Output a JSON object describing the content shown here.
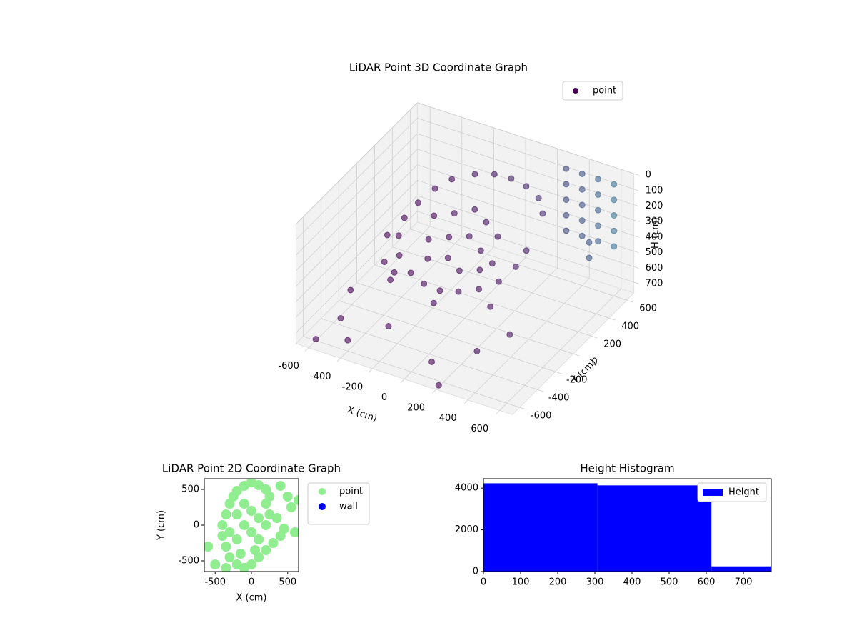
{
  "chart_data": [
    {
      "type": "scatter3d",
      "title": "LiDAR Point 3D Coordinate Graph",
      "xlabel": "X (cm)",
      "ylabel": "Y (cm)",
      "zlabel": "H (cm)",
      "xlim": [
        -680,
        680
      ],
      "ylim": [
        -680,
        680
      ],
      "zlim": [
        0,
        770
      ],
      "z_inverted": true,
      "xticks": [
        -600,
        -400,
        -200,
        0,
        200,
        400,
        600
      ],
      "yticks": [
        -600,
        -400,
        -200,
        0,
        200,
        400,
        600
      ],
      "zticks": [
        0,
        100,
        200,
        300,
        400,
        500,
        600,
        700
      ],
      "grid": true,
      "legend": "upper right",
      "series": [
        {
          "name": "point",
          "color": "#440154",
          "x": [
            -350,
            -300,
            -250,
            -150,
            -50,
            50,
            150,
            250,
            320,
            -380,
            -360,
            -300,
            -200,
            -100,
            0,
            100,
            200,
            280,
            320,
            330,
            -250,
            -150,
            -50,
            50,
            150,
            -200,
            -100,
            0,
            100,
            200,
            -150,
            -50,
            50,
            150,
            -300,
            0,
            300,
            -550,
            -500,
            -450,
            -600,
            -200,
            100,
            300,
            -400,
            -600,
            200,
            -500,
            450,
            300,
            400,
            500,
            600,
            300,
            400,
            500,
            600,
            300,
            400,
            500,
            600,
            300,
            400,
            500,
            600,
            300,
            400,
            500,
            600,
            500,
            500
          ],
          "y": [
            100,
            200,
            300,
            380,
            420,
            430,
            420,
            380,
            300,
            0,
            -100,
            -200,
            -250,
            -280,
            -280,
            -250,
            -200,
            -120,
            0,
            100,
            100,
            150,
            200,
            150,
            100,
            -50,
            0,
            50,
            0,
            -50,
            -150,
            -100,
            -150,
            -100,
            -300,
            -350,
            -250,
            -300,
            -500,
            -100,
            200,
            -500,
            -550,
            -400,
            -600,
            -600,
            -650,
            100,
            -300,
            600,
            600,
            600,
            600,
            600,
            600,
            600,
            600,
            600,
            600,
            600,
            600,
            600,
            600,
            600,
            600,
            600,
            600,
            600,
            600,
            500,
            500
          ],
          "z": [
            200,
            150,
            130,
            110,
            100,
            100,
            110,
            130,
            160,
            250,
            300,
            350,
            400,
            420,
            430,
            420,
            400,
            370,
            330,
            280,
            250,
            230,
            200,
            220,
            250,
            300,
            280,
            270,
            300,
            320,
            350,
            340,
            360,
            350,
            450,
            470,
            450,
            600,
            650,
            500,
            550,
            600,
            700,
            650,
            700,
            760,
            760,
            700,
            550,
            50,
            50,
            50,
            50,
            150,
            150,
            150,
            150,
            250,
            250,
            250,
            250,
            350,
            350,
            350,
            350,
            450,
            450,
            450,
            450,
            400,
            500
          ]
        }
      ]
    },
    {
      "type": "scatter",
      "title": "LiDAR Point 2D Coordinate Graph",
      "xlabel": "X (cm)",
      "ylabel": "Y (cm)",
      "xlim": [
        -650,
        650
      ],
      "ylim": [
        -650,
        650
      ],
      "xticks": [
        -500,
        0,
        500
      ],
      "yticks": [
        -500,
        0,
        500
      ],
      "legend": "outside",
      "series": [
        {
          "name": "point",
          "color": "#90ee90",
          "x": [
            -100,
            0,
            100,
            200,
            250,
            200,
            250,
            350,
            450,
            400,
            300,
            200,
            100,
            0,
            -100,
            -200,
            -300,
            -350,
            -400,
            -400,
            -350,
            -300,
            -250,
            -200,
            -100,
            0,
            100,
            -100,
            0,
            -200,
            100,
            -200,
            50,
            -150,
            200,
            -300,
            500,
            550,
            -600,
            -500,
            -350,
            600,
            400,
            650
          ],
          "y": [
            550,
            600,
            560,
            500,
            400,
            300,
            150,
            100,
            -50,
            -150,
            -250,
            -350,
            -450,
            -550,
            -600,
            -550,
            -450,
            -300,
            -150,
            0,
            150,
            300,
            400,
            480,
            300,
            200,
            100,
            0,
            -100,
            -200,
            -200,
            150,
            -350,
            -400,
            0,
            -100,
            400,
            250,
            -300,
            -550,
            -600,
            -100,
            550,
            350
          ]
        },
        {
          "name": "wall",
          "color": "#0000ff",
          "x": [],
          "y": []
        }
      ]
    },
    {
      "type": "histogram",
      "title": "Height Histogram",
      "bins": [
        0,
        307,
        614,
        775
      ],
      "values": [
        4230,
        4130,
        250
      ],
      "xlim": [
        0,
        775
      ],
      "ylim": [
        0,
        4450
      ],
      "xticks": [
        0,
        100,
        200,
        300,
        400,
        500,
        600,
        700
      ],
      "yticks": [
        0,
        2000,
        4000
      ],
      "legend": "upper right",
      "series_name": "Height",
      "color": "#0000ff"
    }
  ]
}
